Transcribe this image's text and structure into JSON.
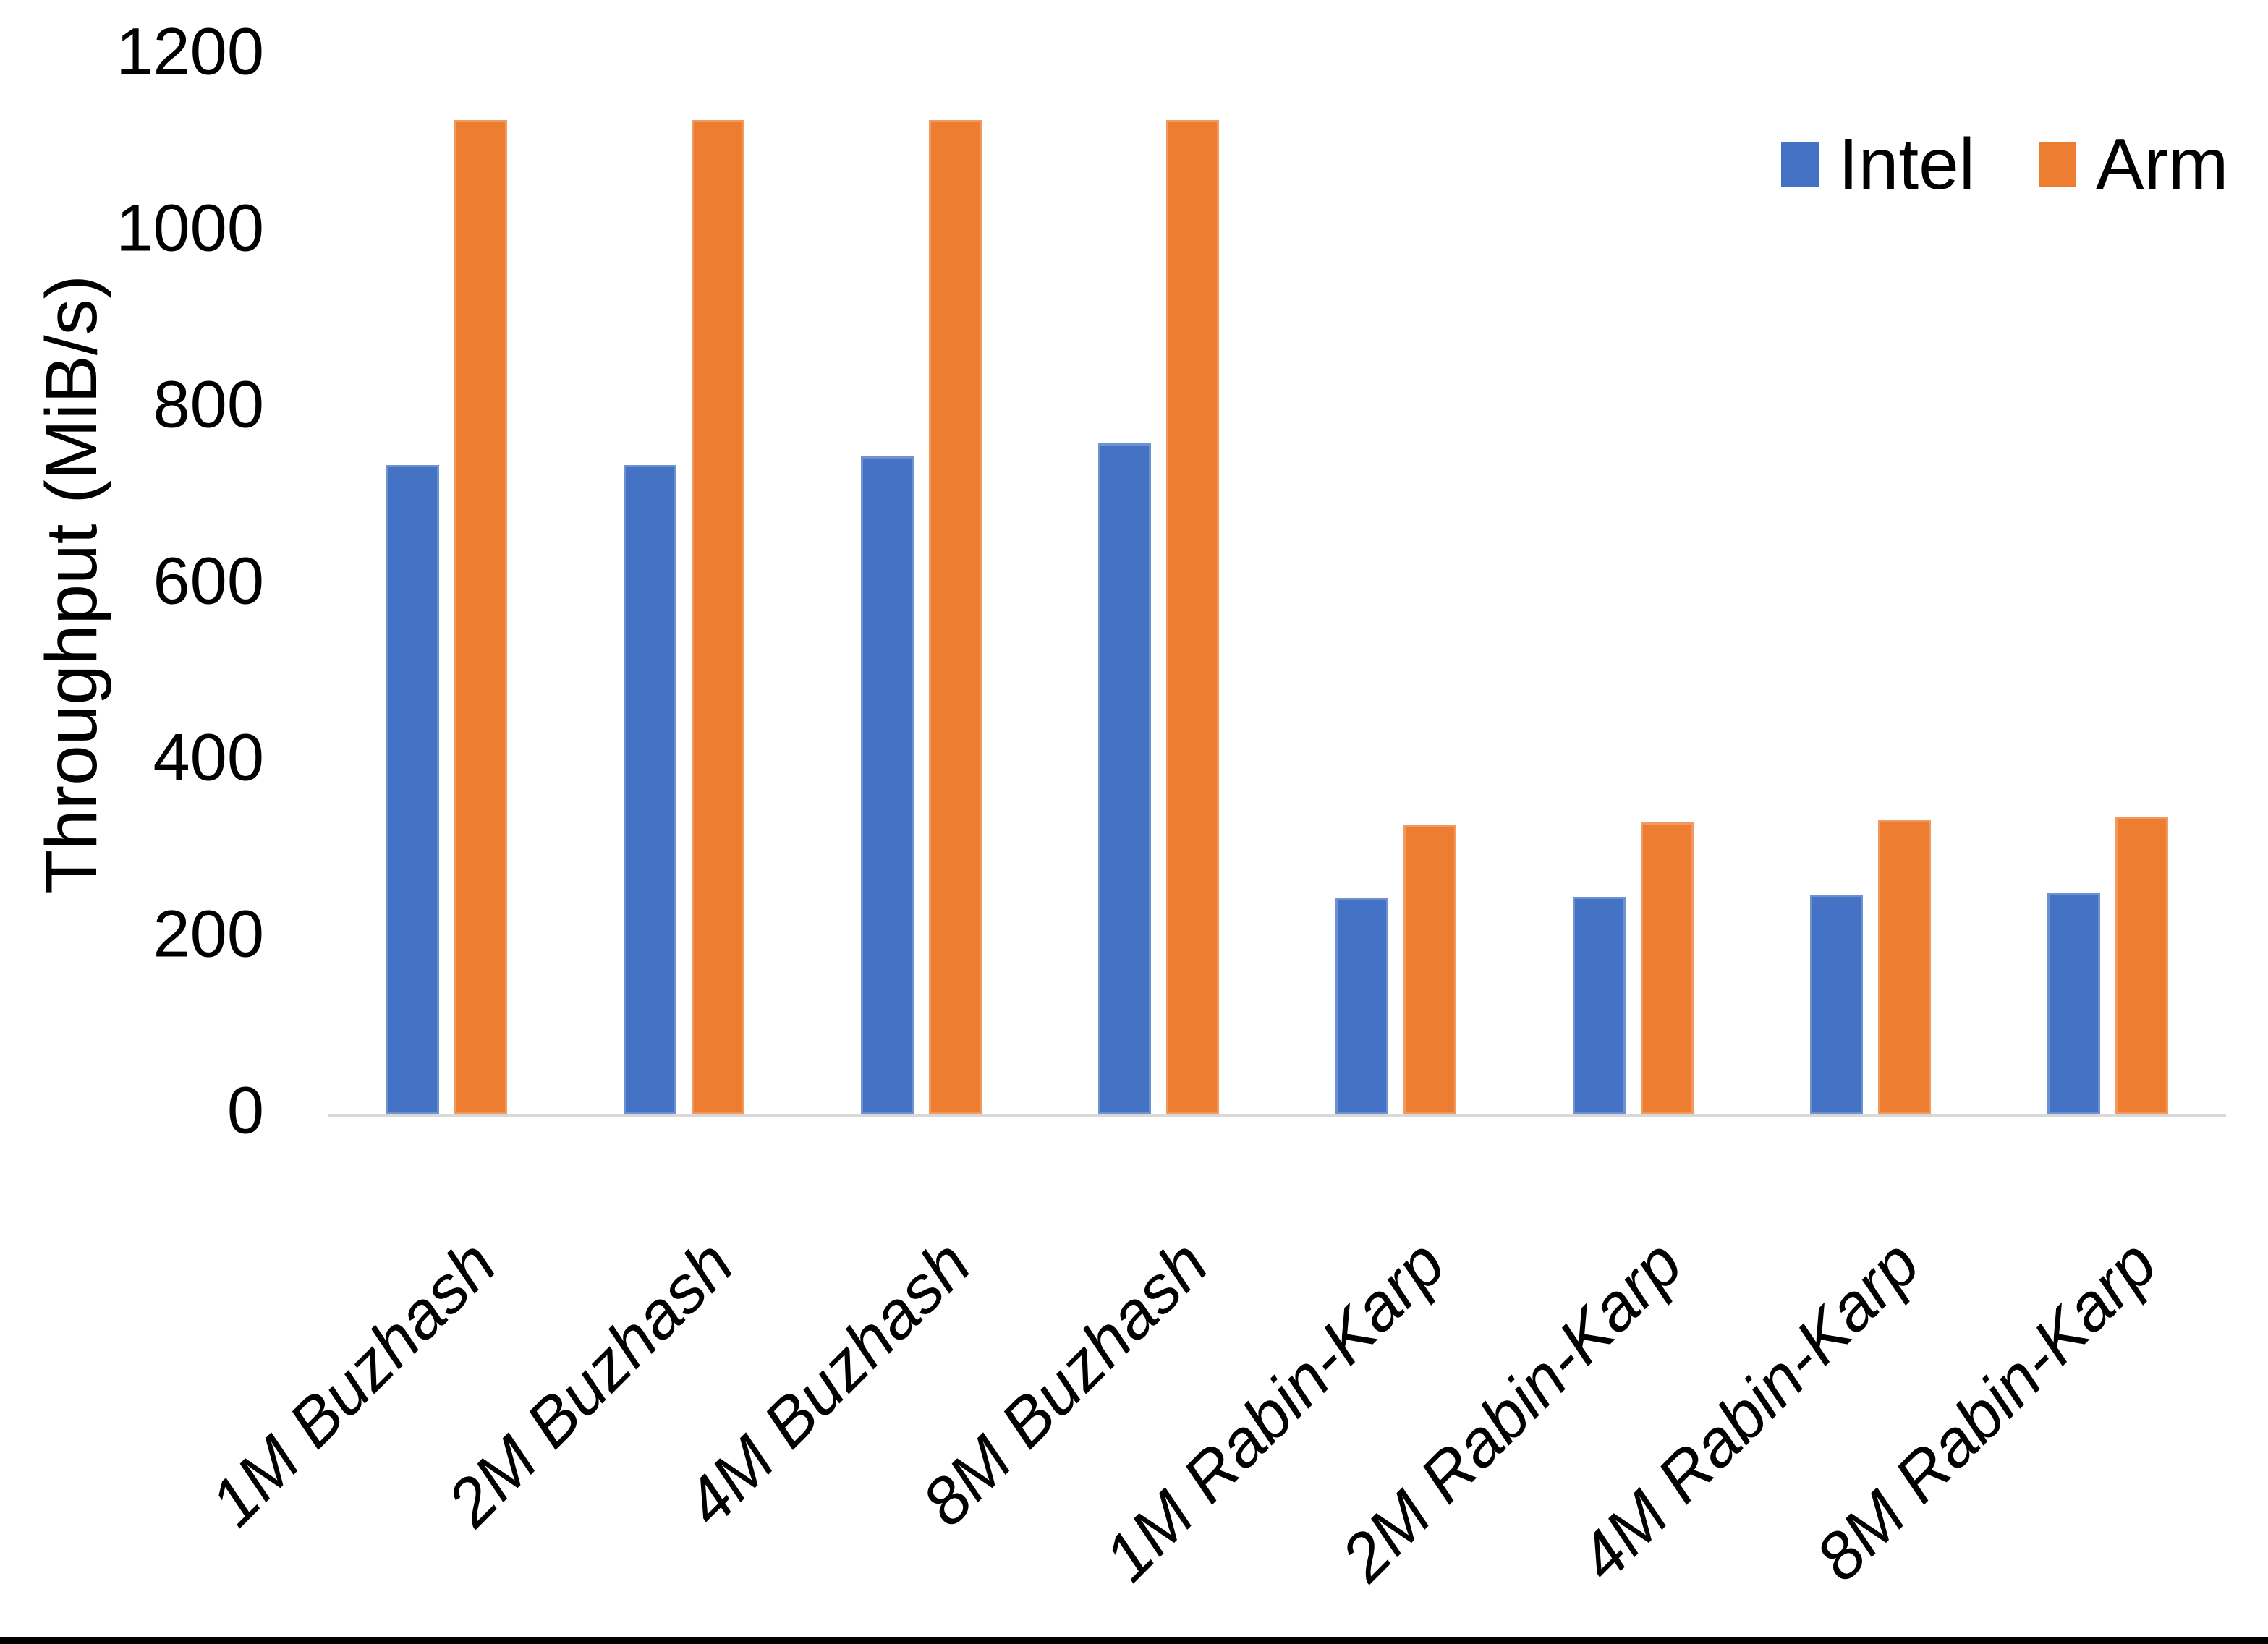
{
  "chart_data": {
    "type": "bar",
    "title": "",
    "xlabel": "",
    "ylabel": "Throughput (MiB/s)",
    "ylim": [
      0,
      1200
    ],
    "yticks": [
      0,
      200,
      400,
      600,
      800,
      1000,
      1200
    ],
    "grid": false,
    "legend_position": "top-right",
    "axis_line_color": "#D9D9D9",
    "categories": [
      "1M Buzhash",
      "2M Buzhash",
      "4M Buzhash",
      "8M Buzhash",
      "1M Rabin-Karp",
      "2M Rabin-Karp",
      "4M Rabin-Karp",
      "8M Rabin-Karp"
    ],
    "series": [
      {
        "name": "Intel",
        "color": "#4472C4",
        "values": [
          735,
          735,
          745,
          760,
          245,
          246,
          248,
          250
        ]
      },
      {
        "name": "Arm",
        "color": "#ED7D31",
        "values": [
          1126,
          1126,
          1126,
          1126,
          327,
          330,
          333,
          336
        ]
      }
    ]
  }
}
